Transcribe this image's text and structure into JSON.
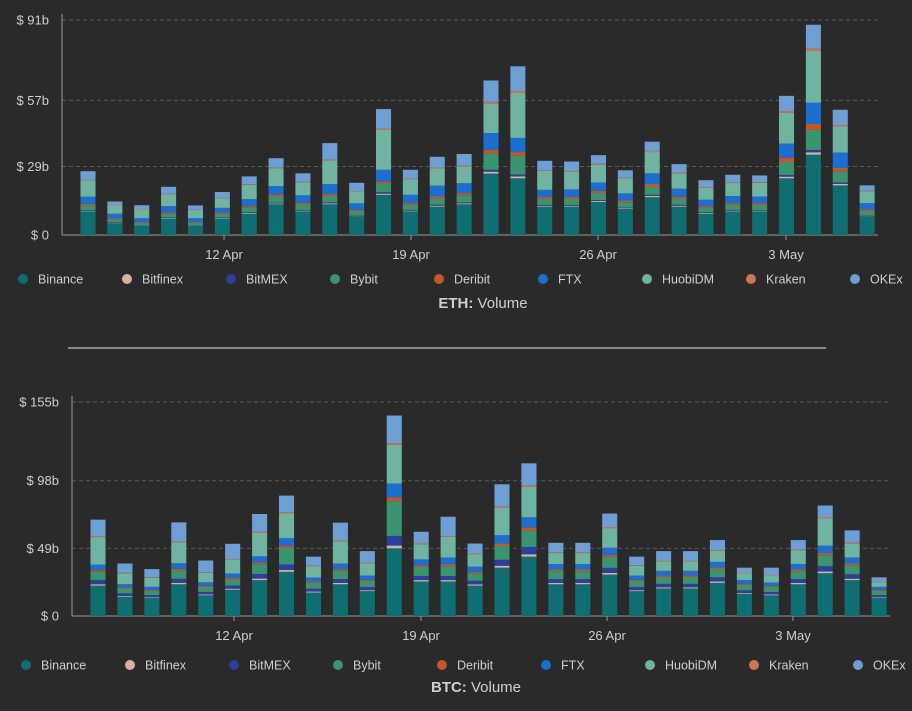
{
  "series_colors": {
    "Binance": "#0e6e72",
    "Bitfinex": "#d9b1a0",
    "BitMEX": "#2b3f9c",
    "Bybit": "#3a9470",
    "Deribit": "#c5552a",
    "FTX": "#1a6fd0",
    "HuobiDM": "#6fb3a3",
    "Kraken": "#cc7751",
    "OKEx": "#6d9fd4"
  },
  "panels": [
    {
      "title_bold": "ETH:",
      "title_rest": " Volume",
      "y_tick_labels": [
        "$ 0",
        "$ 29b",
        "$ 57b",
        "$ 91b"
      ],
      "x_tick_labels": [
        "12 Apr",
        "19 Apr",
        "26 Apr",
        "3 May"
      ],
      "legend": [
        "Binance",
        "Bitfinex",
        "BitMEX",
        "Bybit",
        "Deribit",
        "FTX",
        "HuobiDM",
        "Kraken",
        "OKEx"
      ]
    },
    {
      "title_bold": "BTC:",
      "title_rest": " Volume",
      "y_tick_labels": [
        "$ 0",
        "$ 49b",
        "$ 98b",
        "$ 155b"
      ],
      "x_tick_labels": [
        "12 Apr",
        "19 Apr",
        "26 Apr",
        "3 May"
      ],
      "legend": [
        "Binance",
        "Bitfinex",
        "BitMEX",
        "Bybit",
        "Deribit",
        "FTX",
        "HuobiDM",
        "Kraken",
        "OKEx"
      ]
    }
  ],
  "chart_data": [
    {
      "type": "bar",
      "stacked": true,
      "title": "ETH: Volume",
      "unit": "$ billions",
      "categories": [
        "2021-04-07",
        "2021-04-08",
        "2021-04-09",
        "2021-04-10",
        "2021-04-11",
        "2021-04-12",
        "2021-04-13",
        "2021-04-14",
        "2021-04-15",
        "2021-04-16",
        "2021-04-17",
        "2021-04-18",
        "2021-04-19",
        "2021-04-20",
        "2021-04-21",
        "2021-04-22",
        "2021-04-23",
        "2021-04-24",
        "2021-04-25",
        "2021-04-26",
        "2021-04-27",
        "2021-04-28",
        "2021-04-29",
        "2021-04-30",
        "2021-05-01",
        "2021-05-02",
        "2021-05-03",
        "2021-05-04",
        "2021-05-05",
        "2021-05-06"
      ],
      "x_ticks": [
        "12 Apr",
        "19 Apr",
        "26 Apr",
        "3 May"
      ],
      "ylim": [
        0,
        91
      ],
      "y_ticks": [
        0,
        29,
        57,
        91
      ],
      "grid": true,
      "legend_position": "bottom",
      "series": [
        {
          "name": "Binance",
          "values": [
            10,
            5,
            4,
            7,
            4,
            7,
            9,
            13,
            10,
            13,
            8,
            17,
            10,
            12,
            13,
            26,
            24,
            12,
            12,
            14,
            11,
            16,
            12,
            9,
            10,
            10,
            24,
            34,
            21,
            8
          ]
        },
        {
          "name": "Bitfinex",
          "values": [
            0.3,
            0.2,
            0.1,
            0.2,
            0.1,
            0.2,
            0.3,
            0.3,
            0.3,
            0.4,
            0.2,
            0.5,
            0.3,
            0.4,
            0.4,
            0.8,
            0.8,
            0.3,
            0.3,
            0.4,
            0.3,
            0.5,
            0.4,
            0.3,
            0.3,
            0.3,
            0.7,
            1,
            0.6,
            0.2
          ]
        },
        {
          "name": "BitMEX",
          "values": [
            0.3,
            0.2,
            0.1,
            0.2,
            0.1,
            0.2,
            0.3,
            0.3,
            0.3,
            0.4,
            0.2,
            0.6,
            0.3,
            0.4,
            0.4,
            0.8,
            0.8,
            0.3,
            0.3,
            0.4,
            0.3,
            0.5,
            0.4,
            0.3,
            0.3,
            0.3,
            0.7,
            1,
            0.6,
            0.2
          ]
        },
        {
          "name": "Bybit",
          "values": [
            2,
            1.2,
            1,
            1.6,
            1,
            1.6,
            2,
            2.7,
            2.3,
            2.7,
            1.8,
            3.5,
            2.2,
            2.7,
            3,
            7,
            8,
            2.7,
            2.7,
            3,
            2.3,
            3.5,
            2.6,
            2,
            2.2,
            2.2,
            5.5,
            8.5,
            4.8,
            1.8
          ]
        },
        {
          "name": "Deribit",
          "values": [
            0.6,
            0.4,
            0.3,
            0.5,
            0.3,
            0.5,
            0.6,
            0.8,
            0.7,
            0.8,
            0.5,
            1,
            0.7,
            0.8,
            0.9,
            1.5,
            1.5,
            0.8,
            0.8,
            0.9,
            0.7,
            1.1,
            0.8,
            0.6,
            0.7,
            0.7,
            1.8,
            2.5,
            1.4,
            0.6
          ]
        },
        {
          "name": "FTX",
          "values": [
            3,
            2,
            1.6,
            2.7,
            1.6,
            2,
            3,
            3.6,
            3.2,
            4.2,
            2.7,
            5,
            3.5,
            4.6,
            4.2,
            7,
            6,
            3,
            3.2,
            3.5,
            3,
            4.5,
            3.4,
            2.7,
            3,
            2.8,
            6,
            9,
            6.5,
            2.7
          ]
        },
        {
          "name": "HuobiDM",
          "values": [
            7,
            3.5,
            3.8,
            5,
            3.5,
            4,
            6,
            7.5,
            5.5,
            10,
            5,
            17,
            6.5,
            7.3,
            7,
            12.5,
            19,
            8,
            7.5,
            7.5,
            6.3,
            9,
            6.5,
            5,
            5.5,
            5.8,
            13,
            22,
            11,
            5
          ]
        },
        {
          "name": "Kraken",
          "values": [
            0.3,
            0.2,
            0.1,
            0.2,
            0.1,
            0.2,
            0.3,
            0.3,
            0.3,
            0.4,
            0.2,
            0.5,
            0.3,
            0.4,
            0.4,
            0.8,
            0.8,
            0.3,
            0.3,
            0.4,
            0.3,
            0.5,
            0.4,
            0.3,
            0.3,
            0.3,
            0.7,
            1,
            0.6,
            0.2
          ]
        },
        {
          "name": "OKEx",
          "values": [
            3.5,
            1.5,
            1.6,
            3,
            1.8,
            2.5,
            3.3,
            4,
            3.5,
            7,
            3.5,
            8.2,
            3.8,
            4.5,
            5,
            9,
            10.5,
            4,
            4,
            3.7,
            3.2,
            3.9,
            3.5,
            3,
            3.2,
            2.8,
            6.5,
            10,
            6.5,
            2.3
          ]
        }
      ]
    },
    {
      "type": "bar",
      "stacked": true,
      "title": "BTC: Volume",
      "unit": "$ billions",
      "categories": [
        "2021-04-07",
        "2021-04-08",
        "2021-04-09",
        "2021-04-10",
        "2021-04-11",
        "2021-04-12",
        "2021-04-13",
        "2021-04-14",
        "2021-04-15",
        "2021-04-16",
        "2021-04-17",
        "2021-04-18",
        "2021-04-19",
        "2021-04-20",
        "2021-04-21",
        "2021-04-22",
        "2021-04-23",
        "2021-04-24",
        "2021-04-25",
        "2021-04-26",
        "2021-04-27",
        "2021-04-28",
        "2021-04-29",
        "2021-04-30",
        "2021-05-01",
        "2021-05-02",
        "2021-05-03",
        "2021-05-04",
        "2021-05-05",
        "2021-05-06"
      ],
      "x_ticks": [
        "12 Apr",
        "19 Apr",
        "26 Apr",
        "3 May"
      ],
      "ylim": [
        0,
        155
      ],
      "y_ticks": [
        0,
        49,
        98,
        155
      ],
      "grid": true,
      "legend_position": "bottom",
      "series": [
        {
          "name": "Binance",
          "values": [
            22,
            14,
            13,
            23,
            15,
            19,
            26,
            32,
            17,
            23,
            18,
            49,
            25,
            25,
            22,
            35,
            43,
            23,
            23,
            30,
            18,
            20,
            20,
            24,
            16,
            15,
            23,
            31,
            26,
            13
          ]
        },
        {
          "name": "Bitfinex",
          "values": [
            1,
            0.6,
            0.5,
            1,
            0.6,
            0.8,
            1.1,
            1.3,
            0.7,
            1,
            0.7,
            2,
            1,
            1,
            0.9,
            1.4,
            1.7,
            0.9,
            0.9,
            1.2,
            0.7,
            0.8,
            0.8,
            1,
            0.6,
            0.6,
            0.9,
            1.2,
            1,
            0.5
          ]
        },
        {
          "name": "BitMEX",
          "values": [
            3,
            1.8,
            1.6,
            3,
            1.8,
            2.3,
            3.3,
            4,
            2.1,
            2.8,
            2.2,
            7,
            3,
            3,
            2.6,
            4.3,
            5.3,
            2.8,
            2.8,
            3.7,
            2.2,
            2.5,
            2.5,
            3,
            2,
            1.8,
            2.8,
            3.8,
            3.2,
            1.6
          ]
        },
        {
          "name": "Bybit",
          "values": [
            6,
            3.5,
            3.2,
            6,
            3.7,
            4.6,
            7,
            12,
            4.3,
            6,
            4.5,
            25,
            6.5,
            7,
            5.5,
            10,
            12,
            5.8,
            5.8,
            8,
            4.5,
            5,
            5,
            6,
            4,
            3.7,
            5.8,
            8,
            6.5,
            3.2
          ]
        },
        {
          "name": "Deribit",
          "values": [
            1.2,
            0.7,
            0.6,
            1.2,
            0.8,
            1,
            1.3,
            1.6,
            0.9,
            1.2,
            0.9,
            3,
            1.3,
            1.3,
            1.1,
            1.8,
            2.2,
            1.2,
            1.2,
            1.5,
            0.9,
            1,
            1,
            1.2,
            0.8,
            0.7,
            1.2,
            1.6,
            1.3,
            0.6
          ]
        },
        {
          "name": "FTX",
          "values": [
            4,
            2.4,
            2.2,
            4,
            2.5,
            3.1,
            4.5,
            5.4,
            2.9,
            4,
            3,
            10,
            4.2,
            5,
            3.7,
            6,
            7.3,
            3.9,
            3.9,
            5,
            3,
            3.4,
            3.4,
            4,
            2.7,
            2.5,
            4,
            5.3,
            4.4,
            2.2
          ]
        },
        {
          "name": "HuobiDM",
          "values": [
            20,
            8,
            6.5,
            15,
            7,
            10,
            17,
            18,
            8,
            16,
            9,
            28,
            11,
            15,
            9,
            20,
            22,
            8,
            8,
            14,
            7,
            7,
            7,
            8,
            5,
            5,
            10,
            20,
            10,
            3.5
          ]
        },
        {
          "name": "Kraken",
          "values": [
            0.6,
            0.4,
            0.4,
            0.6,
            0.4,
            0.5,
            0.7,
            0.9,
            0.5,
            0.6,
            0.5,
            1.2,
            0.6,
            0.6,
            0.5,
            0.9,
            1.1,
            0.6,
            0.6,
            0.8,
            0.5,
            0.5,
            0.5,
            0.6,
            0.4,
            0.4,
            0.6,
            0.8,
            0.7,
            0.4
          ]
        },
        {
          "name": "OKEx",
          "values": [
            12,
            6.6,
            6,
            14,
            8.4,
            11,
            13,
            12,
            6.6,
            13,
            8.2,
            20,
            8.4,
            14,
            7.2,
            16,
            16,
            6.8,
            6.8,
            10,
            6.2,
            6.8,
            6.8,
            7.2,
            3.5,
            5.3,
            6.7,
            8.3,
            8.9,
            3
          ]
        }
      ]
    }
  ]
}
